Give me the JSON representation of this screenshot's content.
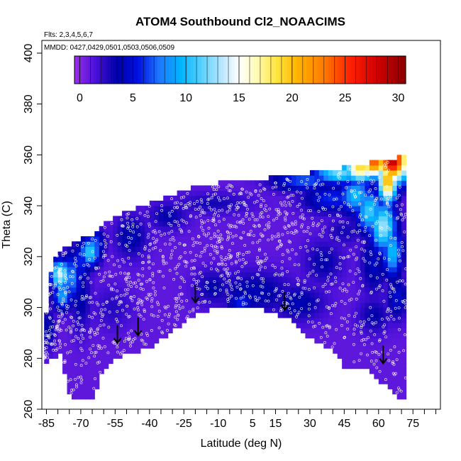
{
  "chart_data": {
    "type": "heatmap",
    "title": "ATOM4 Southbound Cl2_NOAACIMS",
    "subtitle_flights": "Flts: 2,3,4,5,6,7",
    "subtitle_dates": "MMDD: 0427,0429,0501,0503,0506,0509",
    "xlabel": "Latitude (deg N)",
    "ylabel": "Theta (C)",
    "xlim": [
      -87,
      87
    ],
    "ylim": [
      260,
      405
    ],
    "x_tick_labels": [
      "-85",
      "-70",
      "-55",
      "-40",
      "-25",
      "-10",
      "5",
      "15",
      "30",
      "45",
      "60",
      "75"
    ],
    "x_tick_values": [
      -85,
      -70,
      -55,
      -40,
      -25,
      -10,
      5,
      15,
      30,
      45,
      60,
      75
    ],
    "x_minor_ticks": [
      -85,
      -80,
      -75,
      -70,
      -65,
      -60,
      -55,
      -50,
      -45,
      -40,
      -35,
      -30,
      -25,
      -20,
      -15,
      -10,
      -5,
      0,
      5,
      10,
      15,
      20,
      25,
      30,
      35,
      40,
      45,
      50,
      55,
      60,
      65,
      70,
      75,
      80,
      85
    ],
    "y_ticks": [
      260,
      280,
      300,
      320,
      340,
      360,
      380,
      400
    ],
    "y_tick_labels": [
      "260",
      "280",
      "300",
      "320",
      "340",
      "360",
      "380",
      "400"
    ],
    "colorbar": {
      "min": -0.5,
      "max": 30.7,
      "ticks": [
        0,
        5,
        10,
        15,
        20,
        25,
        30
      ],
      "tick_labels": [
        "0",
        "5",
        "10",
        "15",
        "20",
        "25",
        "30"
      ],
      "color_stops": [
        {
          "v": -0.5,
          "c": "#9a30e8"
        },
        {
          "v": 1.5,
          "c": "#4a10d8"
        },
        {
          "v": 3.5,
          "c": "#0000a8"
        },
        {
          "v": 5.5,
          "c": "#0010e0"
        },
        {
          "v": 7.5,
          "c": "#1e78ff"
        },
        {
          "v": 9.5,
          "c": "#00b4ff"
        },
        {
          "v": 11.5,
          "c": "#5ad2ff"
        },
        {
          "v": 13.5,
          "c": "#bfe8ff"
        },
        {
          "v": 15.0,
          "c": "#ffffff"
        },
        {
          "v": 16.5,
          "c": "#fffcc0"
        },
        {
          "v": 18.5,
          "c": "#ffe640"
        },
        {
          "v": 20.5,
          "c": "#ffb400"
        },
        {
          "v": 23.0,
          "c": "#ff7a00"
        },
        {
          "v": 25.5,
          "c": "#ff2000"
        },
        {
          "v": 28.0,
          "c": "#d00000"
        },
        {
          "v": 30.7,
          "c": "#8a0000"
        }
      ]
    },
    "background_value": 1,
    "flight_floor": [
      {
        "lat": -86,
        "theta": 278
      },
      {
        "lat": -79,
        "theta": 282
      },
      {
        "lat": -74,
        "theta": 263
      },
      {
        "lat": -65,
        "theta": 264
      },
      {
        "lat": -60,
        "theta": 276
      },
      {
        "lat": -55,
        "theta": 280
      },
      {
        "lat": -48,
        "theta": 282
      },
      {
        "lat": -40,
        "theta": 284
      },
      {
        "lat": -30,
        "theta": 291
      },
      {
        "lat": -20,
        "theta": 297
      },
      {
        "lat": -10,
        "theta": 301
      },
      {
        "lat": 0,
        "theta": 300
      },
      {
        "lat": 8,
        "theta": 300
      },
      {
        "lat": 20,
        "theta": 296
      },
      {
        "lat": 30,
        "theta": 288
      },
      {
        "lat": 40,
        "theta": 283
      },
      {
        "lat": 45,
        "theta": 277
      },
      {
        "lat": 55,
        "theta": 277
      },
      {
        "lat": 62,
        "theta": 270
      },
      {
        "lat": 68,
        "theta": 265
      },
      {
        "lat": 72,
        "theta": 264
      }
    ],
    "flight_ceiling": [
      {
        "lat": -86,
        "theta": 285
      },
      {
        "lat": -84,
        "theta": 312
      },
      {
        "lat": -80,
        "theta": 322
      },
      {
        "lat": -72,
        "theta": 326
      },
      {
        "lat": -66,
        "theta": 328
      },
      {
        "lat": -60,
        "theta": 333
      },
      {
        "lat": -50,
        "theta": 338
      },
      {
        "lat": -40,
        "theta": 341
      },
      {
        "lat": -30,
        "theta": 344
      },
      {
        "lat": -20,
        "theta": 348
      },
      {
        "lat": -10,
        "theta": 349
      },
      {
        "lat": 5,
        "theta": 350
      },
      {
        "lat": 20,
        "theta": 352
      },
      {
        "lat": 40,
        "theta": 354
      },
      {
        "lat": 50,
        "theta": 356
      },
      {
        "lat": 63,
        "theta": 358
      },
      {
        "lat": 72,
        "theta": 360
      }
    ],
    "features": [
      {
        "lat": 66,
        "theta": 358,
        "sx": 5,
        "sy": 6,
        "v": 29
      },
      {
        "lat": 58,
        "theta": 357,
        "sx": 5,
        "sy": 4,
        "v": 24
      },
      {
        "lat": 52,
        "theta": 355,
        "sx": 5,
        "sy": 4,
        "v": 19
      },
      {
        "lat": 64,
        "theta": 350,
        "sx": 3,
        "sy": 6,
        "v": 21
      },
      {
        "lat": 43,
        "theta": 353,
        "sx": 8,
        "sy": 3,
        "v": 12
      },
      {
        "lat": 28,
        "theta": 350,
        "sx": 10,
        "sy": 3,
        "v": 7
      },
      {
        "lat": 50,
        "theta": 344,
        "sx": 5,
        "sy": 5,
        "v": 10
      },
      {
        "lat": 56,
        "theta": 338,
        "sx": 4,
        "sy": 6,
        "v": 11
      },
      {
        "lat": 62,
        "theta": 332,
        "sx": 4,
        "sy": 7,
        "v": 13
      },
      {
        "lat": 66,
        "theta": 322,
        "sx": 3,
        "sy": 7,
        "v": 10
      },
      {
        "lat": 40,
        "theta": 343,
        "sx": 9,
        "sy": 4,
        "v": 6
      },
      {
        "lat": 58,
        "theta": 318,
        "sx": 4,
        "sy": 9,
        "v": 4.5
      },
      {
        "lat": 68,
        "theta": 304,
        "sx": 3,
        "sy": 6,
        "v": 5
      },
      {
        "lat": -79,
        "theta": 313,
        "sx": 3,
        "sy": 4,
        "v": 14
      },
      {
        "lat": -78,
        "theta": 305,
        "sx": 3,
        "sy": 4,
        "v": 9
      },
      {
        "lat": -74,
        "theta": 312,
        "sx": 3,
        "sy": 7,
        "v": 8
      },
      {
        "lat": -70,
        "theta": 318,
        "sx": 3,
        "sy": 6,
        "v": 6
      },
      {
        "lat": -64,
        "theta": 325,
        "sx": 3,
        "sy": 4,
        "v": 7
      },
      {
        "lat": -66,
        "theta": 322,
        "sx": 3,
        "sy": 4,
        "v": 11
      },
      {
        "lat": -70,
        "theta": 305,
        "sx": 3,
        "sy": 10,
        "v": 4
      },
      {
        "lat": -84,
        "theta": 292,
        "sx": 2,
        "sy": 6,
        "v": 4
      },
      {
        "lat": -48,
        "theta": 328,
        "sx": 5,
        "sy": 6,
        "v": 4
      },
      {
        "lat": -32,
        "theta": 336,
        "sx": 6,
        "sy": 4,
        "v": 3.5
      },
      {
        "lat": -12,
        "theta": 341,
        "sx": 12,
        "sy": 3,
        "v": 3
      },
      {
        "lat": -12,
        "theta": 308,
        "sx": 6,
        "sy": 5,
        "v": 3.5
      },
      {
        "lat": 6,
        "theta": 306,
        "sx": 12,
        "sy": 6,
        "v": 4
      },
      {
        "lat": 0,
        "theta": 302,
        "sx": 4,
        "sy": 3,
        "v": 6
      },
      {
        "lat": 25,
        "theta": 302,
        "sx": 8,
        "sy": 5,
        "v": 4
      },
      {
        "lat": 36,
        "theta": 318,
        "sx": 6,
        "sy": 6,
        "v": 3.5
      },
      {
        "lat": 58,
        "theta": 297,
        "sx": 5,
        "sy": 5,
        "v": 3.5
      },
      {
        "lat": -56,
        "theta": 300,
        "sx": 6,
        "sy": 6,
        "v": 2.5
      },
      {
        "lat": 45,
        "theta": 330,
        "sx": 6,
        "sy": 4,
        "v": 3
      }
    ],
    "arrows": [
      {
        "lat": -54,
        "theta": 286
      },
      {
        "lat": -45,
        "theta": 289
      },
      {
        "lat": -20,
        "theta": 302
      },
      {
        "lat": 19,
        "theta": 299
      },
      {
        "lat": 62,
        "theta": 278
      }
    ],
    "sample_points_note_count": 1500
  }
}
